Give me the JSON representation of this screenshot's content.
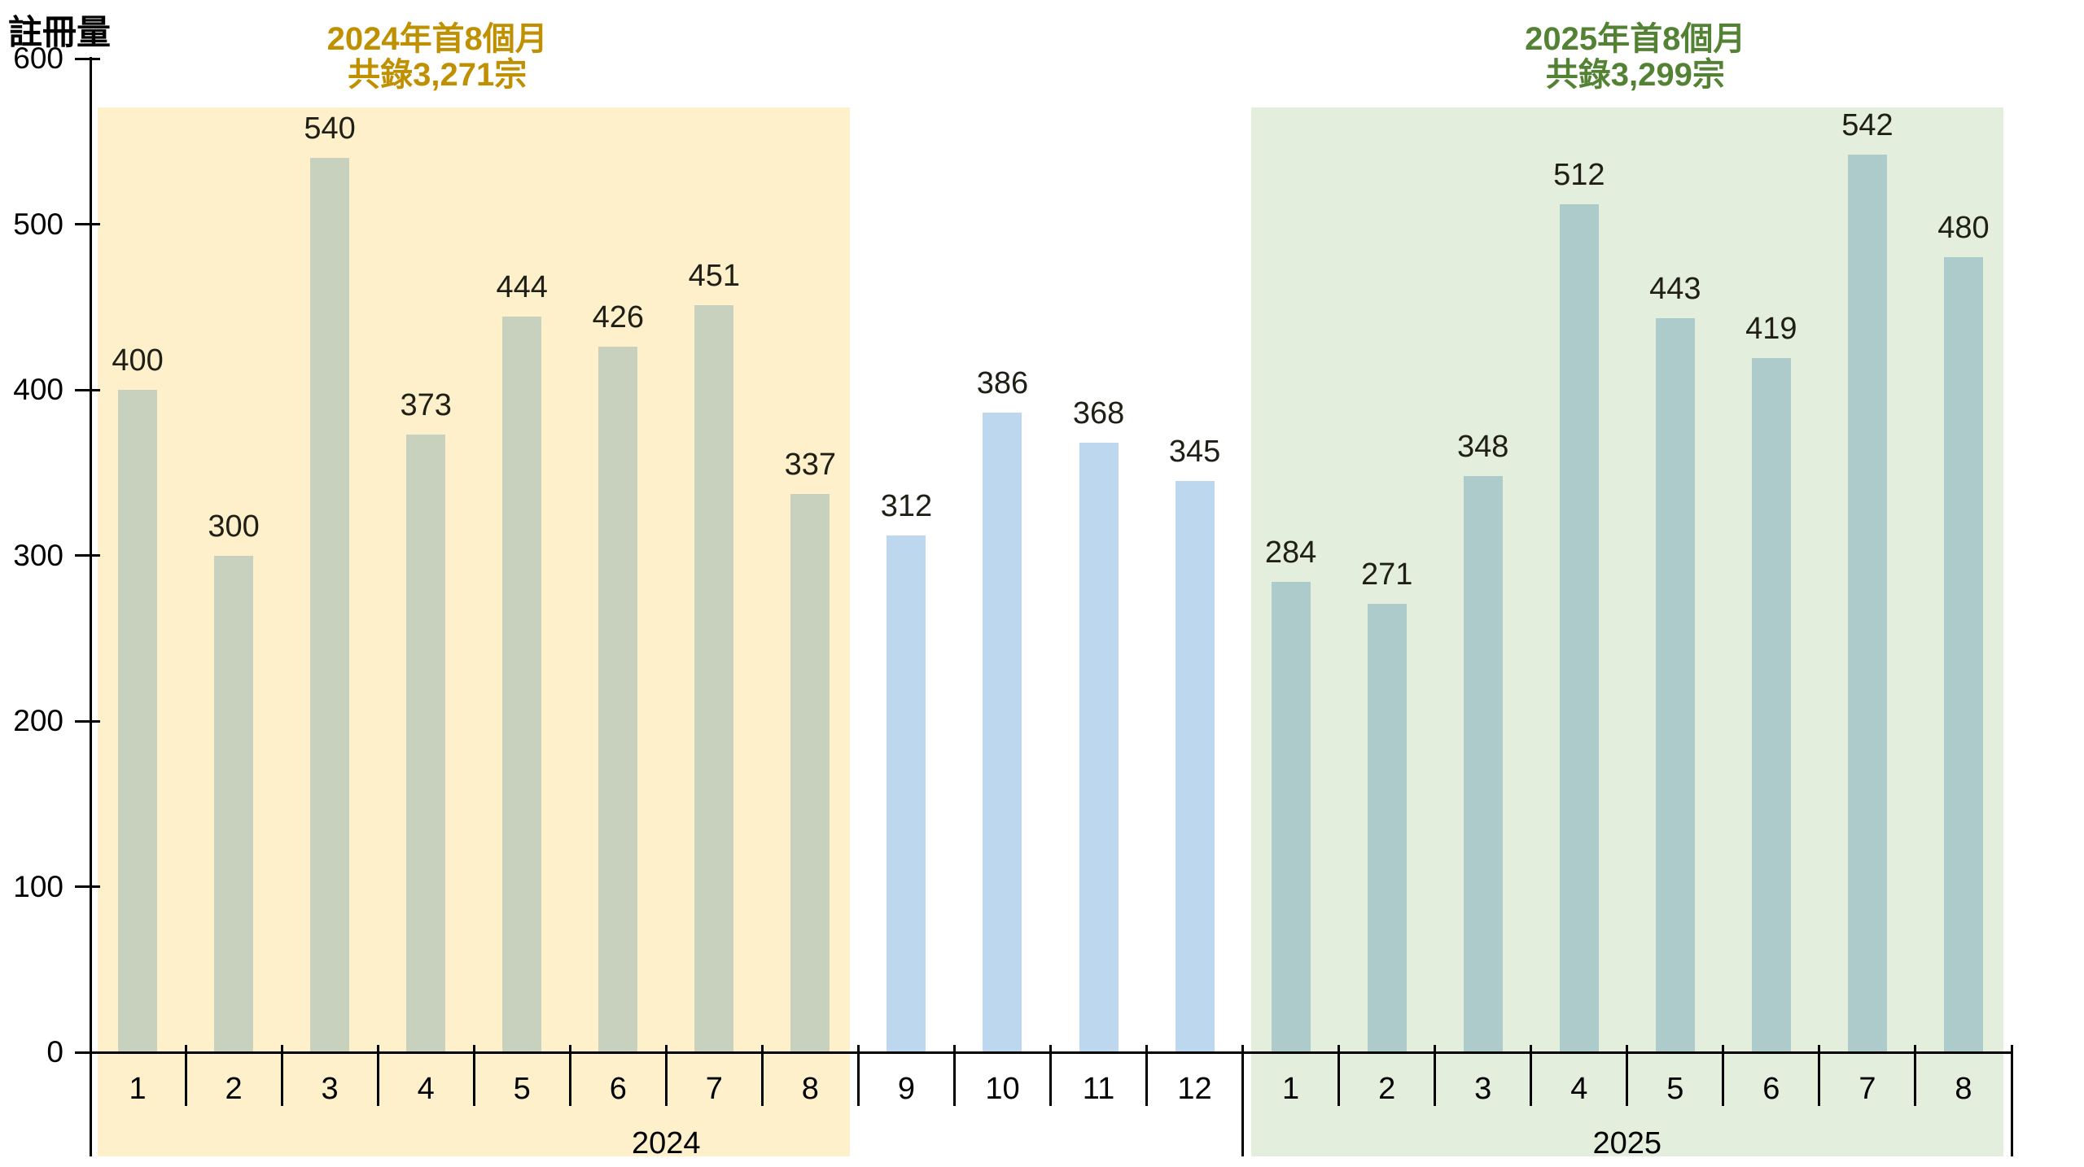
{
  "chart_data": {
    "type": "bar",
    "ylabel": "註冊量",
    "ylim": [
      0,
      600
    ],
    "ytick_step": 100,
    "ytick_labels": [
      "0",
      "100",
      "200",
      "300",
      "400",
      "500",
      "600"
    ],
    "grid": false,
    "legend": "none",
    "axis_color": "#000000",
    "value_label_color": "#1f1f16",
    "groups": [
      {
        "name": "2024-first-8-months",
        "year": "2024",
        "annotation": {
          "line1": "2024年首8個月",
          "line2": "共錄3,271宗",
          "color": "#BF9000"
        },
        "region_color": "#FDF0CB",
        "bar_color": "#C8D0BE",
        "categories": [
          "1",
          "2",
          "3",
          "4",
          "5",
          "6",
          "7",
          "8"
        ],
        "values": [
          400,
          300,
          540,
          373,
          444,
          426,
          451,
          337
        ]
      },
      {
        "name": "2024-months-9-12",
        "year": "2024",
        "bar_color": "#BDD7EE",
        "categories": [
          "9",
          "10",
          "11",
          "12"
        ],
        "values": [
          312,
          386,
          368,
          345
        ]
      },
      {
        "name": "2025-first-8-months",
        "year": "2025",
        "annotation": {
          "line1": "2025年首8個月",
          "line2": "共錄3,299宗",
          "color": "#548235"
        },
        "region_color": "#E3EEDC",
        "bar_color": "#ADCBCB",
        "categories": [
          "1",
          "2",
          "3",
          "4",
          "5",
          "6",
          "7",
          "8"
        ],
        "values": [
          284,
          271,
          348,
          512,
          443,
          419,
          542,
          480
        ]
      }
    ],
    "year_sections": [
      {
        "label": "2024",
        "month_count": 12
      },
      {
        "label": "2025",
        "month_count": 8
      }
    ]
  }
}
